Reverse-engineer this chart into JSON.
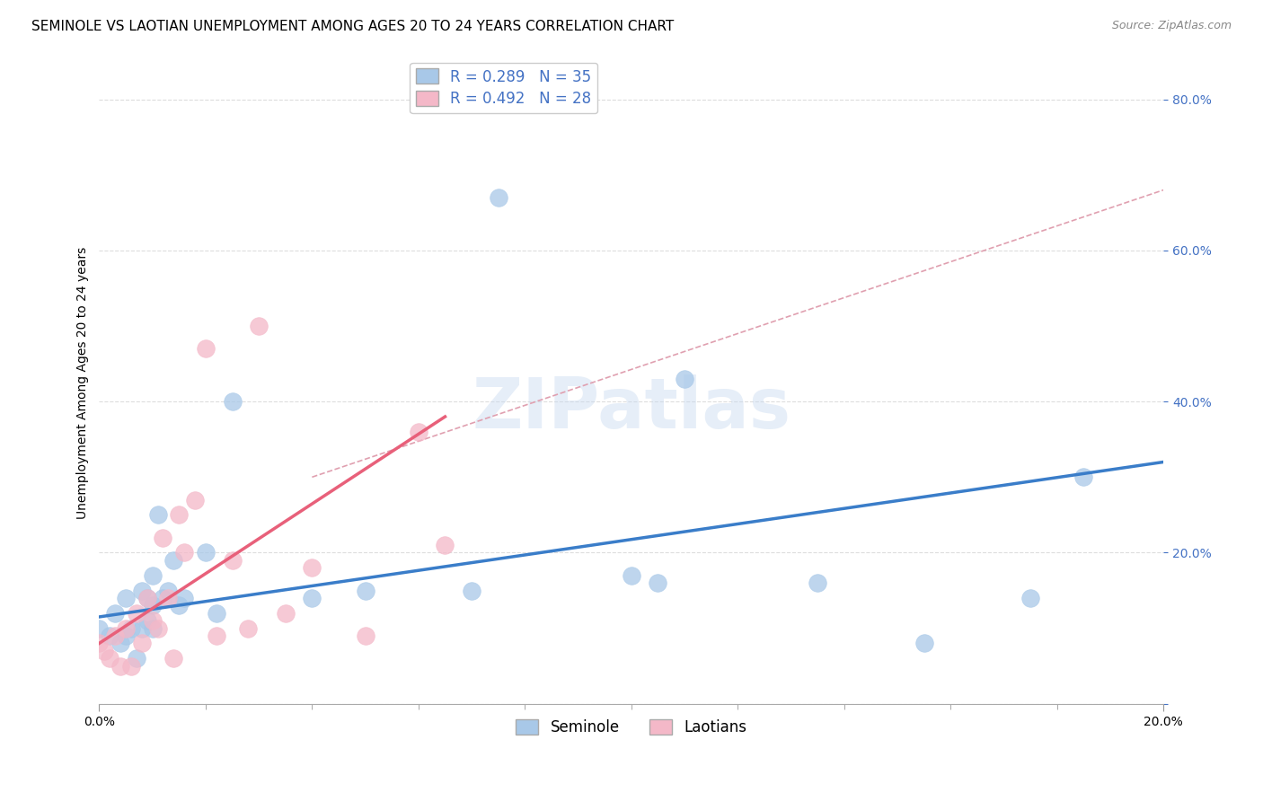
{
  "title": "SEMINOLE VS LAOTIAN UNEMPLOYMENT AMONG AGES 20 TO 24 YEARS CORRELATION CHART",
  "source": "Source: ZipAtlas.com",
  "ylabel": "Unemployment Among Ages 20 to 24 years",
  "ytick_labels": [
    "",
    "20.0%",
    "40.0%",
    "60.0%",
    "80.0%"
  ],
  "ytick_values": [
    0,
    0.2,
    0.4,
    0.6,
    0.8
  ],
  "xlim": [
    0,
    0.2
  ],
  "ylim": [
    0,
    0.85
  ],
  "watermark": "ZIPatlas",
  "seminole_R": 0.289,
  "seminole_N": 35,
  "laotian_R": 0.492,
  "laotian_N": 28,
  "seminole_color": "#a8c8e8",
  "laotian_color": "#f4b8c8",
  "seminole_line_color": "#3a7dc9",
  "laotian_line_color": "#e8607a",
  "seminole_text_color": "#4472c4",
  "laotian_text_color": "#e06080",
  "dashed_line_color": "#e0a0b0",
  "grid_color": "#dddddd",
  "background_color": "#ffffff",
  "title_fontsize": 11,
  "axis_label_fontsize": 10,
  "tick_fontsize": 10,
  "legend_fontsize": 12,
  "seminole_points_x": [
    0.0,
    0.002,
    0.003,
    0.004,
    0.005,
    0.005,
    0.006,
    0.007,
    0.008,
    0.008,
    0.009,
    0.009,
    0.01,
    0.01,
    0.01,
    0.011,
    0.012,
    0.013,
    0.014,
    0.015,
    0.016,
    0.02,
    0.022,
    0.025,
    0.04,
    0.05,
    0.07,
    0.075,
    0.1,
    0.105,
    0.11,
    0.135,
    0.155,
    0.175,
    0.185
  ],
  "seminole_points_y": [
    0.1,
    0.09,
    0.12,
    0.08,
    0.09,
    0.14,
    0.1,
    0.06,
    0.1,
    0.15,
    0.14,
    0.11,
    0.13,
    0.1,
    0.17,
    0.25,
    0.14,
    0.15,
    0.19,
    0.13,
    0.14,
    0.2,
    0.12,
    0.4,
    0.14,
    0.15,
    0.15,
    0.67,
    0.17,
    0.16,
    0.43,
    0.16,
    0.08,
    0.14,
    0.3
  ],
  "laotian_points_x": [
    0.0,
    0.001,
    0.002,
    0.003,
    0.004,
    0.005,
    0.006,
    0.007,
    0.008,
    0.009,
    0.01,
    0.011,
    0.012,
    0.013,
    0.014,
    0.015,
    0.016,
    0.018,
    0.02,
    0.022,
    0.025,
    0.028,
    0.03,
    0.035,
    0.04,
    0.05,
    0.06,
    0.065
  ],
  "laotian_points_y": [
    0.08,
    0.07,
    0.06,
    0.09,
    0.05,
    0.1,
    0.05,
    0.12,
    0.08,
    0.14,
    0.11,
    0.1,
    0.22,
    0.14,
    0.06,
    0.25,
    0.2,
    0.27,
    0.47,
    0.09,
    0.19,
    0.1,
    0.5,
    0.12,
    0.18,
    0.09,
    0.36,
    0.21
  ],
  "seminole_trend_x": [
    0.0,
    0.2
  ],
  "seminole_trend_y": [
    0.115,
    0.32
  ],
  "laotian_trend_x": [
    0.0,
    0.065
  ],
  "laotian_trend_y": [
    0.08,
    0.38
  ],
  "dashed_trend_x": [
    0.04,
    0.2
  ],
  "dashed_trend_y": [
    0.3,
    0.68
  ]
}
